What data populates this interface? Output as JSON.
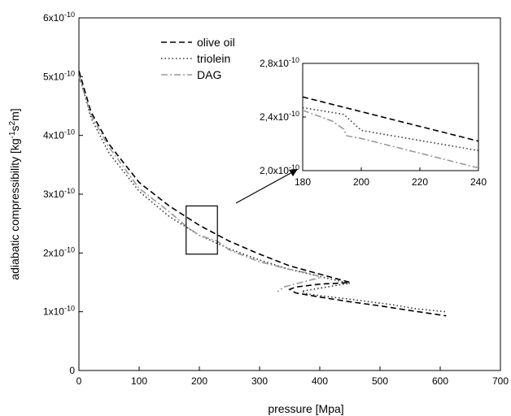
{
  "chart_data": [
    {
      "type": "line",
      "xlabel": "pressure [Mpa]",
      "ylabel_parts": {
        "text": "adiabatic compressibility [kg",
        "sup1": "-1",
        "mid1": "s",
        "sup2": "2",
        "end": "m]"
      },
      "xlim": [
        0,
        700
      ],
      "ylim": [
        0,
        6e-10
      ],
      "x_ticks": [
        0,
        100,
        200,
        300,
        400,
        500,
        600,
        700
      ],
      "x_tick_labels": [
        "0",
        "100",
        "200",
        "300",
        "400",
        "500",
        "600",
        "700"
      ],
      "y_ticks": [
        0,
        1e-10,
        2e-10,
        3e-10,
        4e-10,
        5e-10,
        6e-10
      ],
      "y_tick_labels": [
        {
          "mant": "0",
          "exp": ""
        },
        {
          "mant": "1x10",
          "exp": "-10"
        },
        {
          "mant": "2x10",
          "exp": "-10"
        },
        {
          "mant": "3x10",
          "exp": "-10"
        },
        {
          "mant": "4x10",
          "exp": "-10"
        },
        {
          "mant": "5x10",
          "exp": "-10"
        },
        {
          "mant": "6x10",
          "exp": "-10"
        }
      ],
      "legend": "top-left",
      "grid": false,
      "highlight_box": {
        "x": [
          178,
          230
        ],
        "y": [
          1.98e-10,
          2.8e-10
        ]
      },
      "series": [
        {
          "name": "olive oil",
          "style": "dash",
          "color": "#000000",
          "x": [
            0,
            20,
            50,
            100,
            150,
            200,
            250,
            300,
            350,
            400,
            450,
            440,
            400,
            360,
            350,
            360,
            400,
            450,
            500,
            550,
            610
          ],
          "y": [
            5.1e-10,
            4.4e-10,
            3.85e-10,
            3.2e-10,
            2.8e-10,
            2.47e-10,
            2.2e-10,
            1.98e-10,
            1.78e-10,
            1.64e-10,
            1.5e-10,
            1.49e-10,
            1.47e-10,
            1.42e-10,
            1.38e-10,
            1.32e-10,
            1.25e-10,
            1.17e-10,
            1.1e-10,
            1.02e-10,
            9.3e-11
          ]
        },
        {
          "name": "triolein",
          "style": "dot",
          "color": "#333333",
          "x": [
            0,
            20,
            50,
            100,
            150,
            200,
            250,
            300,
            350,
            400,
            450,
            440,
            400,
            370,
            380,
            420,
            460,
            520,
            560,
            610
          ],
          "y": [
            5.05e-10,
            4.3e-10,
            3.7e-10,
            3.05e-10,
            2.62e-10,
            2.3e-10,
            2.07e-10,
            1.88e-10,
            1.72e-10,
            1.6e-10,
            1.48e-10,
            1.47e-10,
            1.4e-10,
            1.35e-10,
            1.3e-10,
            1.25e-10,
            1.2e-10,
            1.12e-10,
            1.05e-10,
            1e-10
          ]
        },
        {
          "name": "DAG",
          "style": "dashdot",
          "color": "#999999",
          "x": [
            0,
            20,
            50,
            100,
            150,
            180,
            200,
            230,
            250,
            300,
            350,
            380,
            400,
            400,
            370,
            340,
            330
          ],
          "y": [
            5e-10,
            4.35e-10,
            3.8e-10,
            3.1e-10,
            2.7e-10,
            2.44e-10,
            2.3e-10,
            2.2e-10,
            2.05e-10,
            1.85e-10,
            1.72e-10,
            1.66e-10,
            1.6e-10,
            1.58e-10,
            1.5e-10,
            1.42e-10,
            1.34e-10
          ]
        }
      ]
    },
    {
      "type": "line",
      "xlim": [
        180,
        240
      ],
      "ylim": [
        2e-10,
        2.8e-10
      ],
      "x_ticks": [
        180,
        200,
        220,
        240
      ],
      "x_tick_labels": [
        "180",
        "200",
        "220",
        "240"
      ],
      "y_ticks": [
        2e-10,
        2.4e-10,
        2.8e-10
      ],
      "y_tick_labels": [
        {
          "mant": "2,0x10",
          "exp": "-10"
        },
        {
          "mant": "2,4x10",
          "exp": "-10"
        },
        {
          "mant": "2,8x10",
          "exp": "-10"
        }
      ],
      "series": [
        {
          "style": "dash",
          "color": "#000000",
          "x": [
            180,
            240
          ],
          "y": [
            2.55e-10,
            2.22e-10
          ]
        },
        {
          "style": "dot",
          "color": "#333333",
          "x": [
            180,
            194,
            200,
            240
          ],
          "y": [
            2.47e-10,
            2.42e-10,
            2.3e-10,
            2.15e-10
          ]
        },
        {
          "style": "dashdot",
          "color": "#999999",
          "x": [
            180,
            190,
            194,
            195,
            200,
            240
          ],
          "y": [
            2.45e-10,
            2.37e-10,
            2.31e-10,
            2.26e-10,
            2.24e-10,
            2.02e-10
          ]
        }
      ]
    }
  ]
}
